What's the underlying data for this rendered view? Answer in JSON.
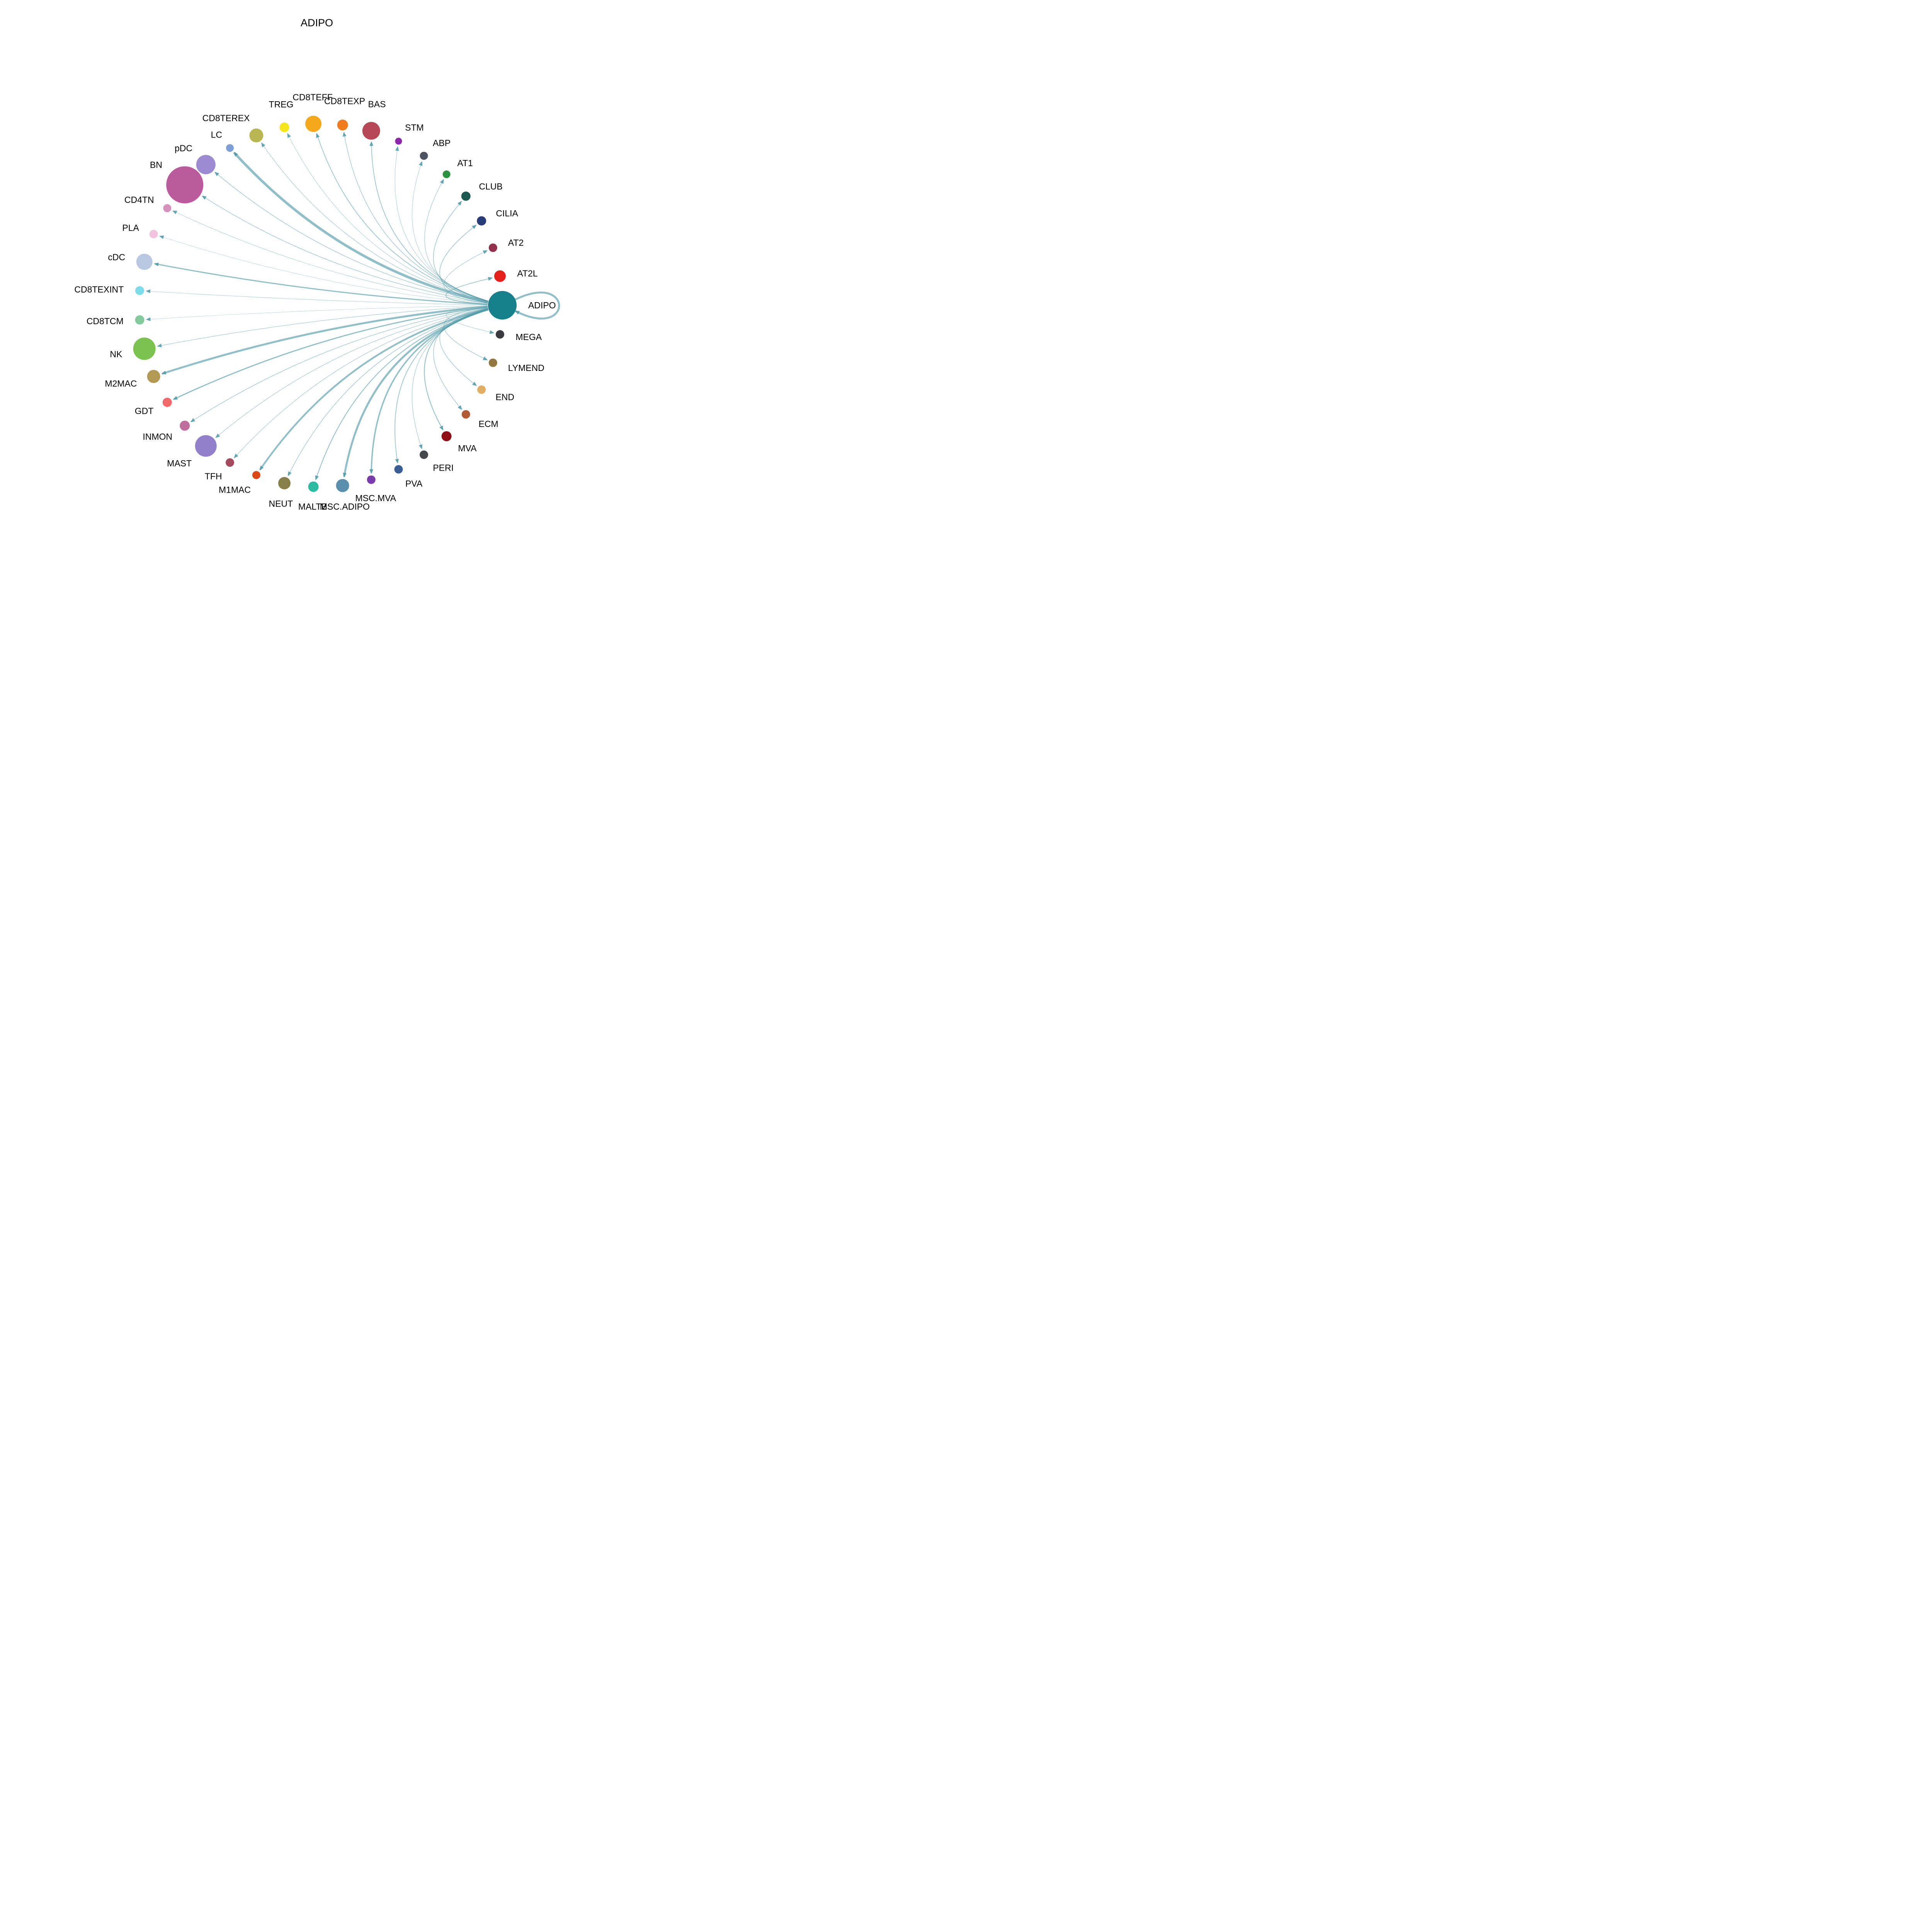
{
  "chart_data": {
    "type": "network",
    "title": "ADIPO",
    "edge_color": "#4e98a6",
    "layout": {
      "center": [
        830,
        790
      ],
      "ring_radius": 470,
      "label_offset": 30,
      "self_loop_extent": 185,
      "legend": "nodes arranged on circle, all directed edges originate from ADIPO node, arrowheads at targets, edge width = interaction strength"
    },
    "nodes": [
      {
        "id": "ADIPO",
        "label": "ADIPO",
        "color": "#17808a",
        "r": 37,
        "angle": 0
      },
      {
        "id": "AT2L",
        "label": "AT2L",
        "color": "#e2201c",
        "r": 15,
        "angle": 9.23
      },
      {
        "id": "AT2",
        "label": "AT2",
        "color": "#93304d",
        "r": 11,
        "angle": 18.46
      },
      {
        "id": "CILIA",
        "label": "CILIA",
        "color": "#283c77",
        "r": 12,
        "angle": 27.69
      },
      {
        "id": "CLUB",
        "label": "CLUB",
        "color": "#1d5951",
        "r": 12,
        "angle": 36.92
      },
      {
        "id": "AT1",
        "label": "AT1",
        "color": "#2c9140",
        "r": 10,
        "angle": 46.15
      },
      {
        "id": "ABP",
        "label": "ABP",
        "color": "#4d5360",
        "r": 10.5,
        "angle": 55.38
      },
      {
        "id": "STM",
        "label": "STM",
        "color": "#8b27a8",
        "r": 9,
        "angle": 64.62
      },
      {
        "id": "BAS",
        "label": "BAS",
        "color": "#b64955",
        "r": 23,
        "angle": 73.85
      },
      {
        "id": "CD8TEXP",
        "label": "CD8TEXP",
        "color": "#ef7d1f",
        "r": 14,
        "angle": 83.08
      },
      {
        "id": "CD8TEFF",
        "label": "CD8TEFF",
        "color": "#f5a81c",
        "r": 21,
        "angle": 92.31
      },
      {
        "id": "TREG",
        "label": "TREG",
        "color": "#f7e51c",
        "r": 12.5,
        "angle": 101.54
      },
      {
        "id": "CD8TEREX",
        "label": "CD8TEREX",
        "color": "#b9b751",
        "r": 18,
        "angle": 110.77
      },
      {
        "id": "LC",
        "label": "LC",
        "color": "#7e9fd6",
        "r": 10,
        "angle": 120.0
      },
      {
        "id": "pDC",
        "label": "pDC",
        "color": "#9c8bd0",
        "r": 25,
        "angle": 129.23
      },
      {
        "id": "BN",
        "label": "BN",
        "color": "#bc5a9e",
        "r": 48,
        "angle": 138.46
      },
      {
        "id": "CD4TN",
        "label": "CD4TN",
        "color": "#d592bd",
        "r": 10.5,
        "angle": 147.69
      },
      {
        "id": "PLA",
        "label": "PLA",
        "color": "#f3c3de",
        "r": 11,
        "angle": 156.92
      },
      {
        "id": "cDC",
        "label": "cDC",
        "color": "#b9c8e0",
        "r": 21,
        "angle": 166.15
      },
      {
        "id": "CD8TEXINT",
        "label": "CD8TEXINT",
        "color": "#7edce8",
        "r": 11.5,
        "angle": 175.38
      },
      {
        "id": "CD8TCM",
        "label": "CD8TCM",
        "color": "#83ca9c",
        "r": 12,
        "angle": 184.62
      },
      {
        "id": "NK",
        "label": "NK",
        "color": "#7cc24f",
        "r": 29,
        "angle": 193.85
      },
      {
        "id": "M2MAC",
        "label": "M2MAC",
        "color": "#b29a54",
        "r": 17,
        "angle": 203.08
      },
      {
        "id": "GDT",
        "label": "GDT",
        "color": "#f2696b",
        "r": 12,
        "angle": 212.31
      },
      {
        "id": "INMON",
        "label": "INMON",
        "color": "#c06f9d",
        "r": 13,
        "angle": 221.54
      },
      {
        "id": "MAST",
        "label": "MAST",
        "color": "#9480ca",
        "r": 28,
        "angle": 230.77
      },
      {
        "id": "TFH",
        "label": "TFH",
        "color": "#a34b5c",
        "r": 11,
        "angle": 240.0
      },
      {
        "id": "M1MAC",
        "label": "M1MAC",
        "color": "#db4718",
        "r": 10.5,
        "angle": 249.23
      },
      {
        "id": "NEUT",
        "label": "NEUT",
        "color": "#877f4a",
        "r": 16,
        "angle": 258.46
      },
      {
        "id": "MALTB",
        "label": "MALTB",
        "color": "#2cbaa2",
        "r": 13.5,
        "angle": 267.69
      },
      {
        "id": "MSC.ADIPO",
        "label": "MSC.ADIPO",
        "color": "#5b8fae",
        "r": 17,
        "angle": 276.92
      },
      {
        "id": "MSC.MVA",
        "label": "MSC.MVA",
        "color": "#7b3cab",
        "r": 11,
        "angle": 286.15
      },
      {
        "id": "PVA",
        "label": "PVA",
        "color": "#3a5e94",
        "r": 11,
        "angle": 295.38
      },
      {
        "id": "PERI",
        "label": "PERI",
        "color": "#45474f",
        "r": 11,
        "angle": 304.62
      },
      {
        "id": "MVA",
        "label": "MVA",
        "color": "#8c1016",
        "r": 13,
        "angle": 313.85
      },
      {
        "id": "ECM",
        "label": "ECM",
        "color": "#b05c35",
        "r": 11,
        "angle": 323.08
      },
      {
        "id": "END",
        "label": "END",
        "color": "#e0af63",
        "r": 11,
        "angle": 332.31
      },
      {
        "id": "LYMEND",
        "label": "LYMEND",
        "color": "#93793f",
        "r": 11,
        "angle": 341.54
      },
      {
        "id": "MEGA",
        "label": "MEGA",
        "color": "#3a3a3c",
        "r": 11,
        "angle": 350.77
      }
    ],
    "edges": [
      {
        "source": "ADIPO",
        "target": "ADIPO",
        "width": 5
      },
      {
        "source": "ADIPO",
        "target": "AT2L",
        "width": 1.6
      },
      {
        "source": "ADIPO",
        "target": "AT2",
        "width": 1
      },
      {
        "source": "ADIPO",
        "target": "CILIA",
        "width": 1.4
      },
      {
        "source": "ADIPO",
        "target": "CLUB",
        "width": 1.4
      },
      {
        "source": "ADIPO",
        "target": "AT1",
        "width": 1
      },
      {
        "source": "ADIPO",
        "target": "ABP",
        "width": 0.8
      },
      {
        "source": "ADIPO",
        "target": "STM",
        "width": 0.8
      },
      {
        "source": "ADIPO",
        "target": "BAS",
        "width": 1.6
      },
      {
        "source": "ADIPO",
        "target": "CD8TEXP",
        "width": 1.2
      },
      {
        "source": "ADIPO",
        "target": "CD8TEFF",
        "width": 1.6
      },
      {
        "source": "ADIPO",
        "target": "TREG",
        "width": 0.8
      },
      {
        "source": "ADIPO",
        "target": "CD8TEREX",
        "width": 1
      },
      {
        "source": "ADIPO",
        "target": "LC",
        "width": 6.5
      },
      {
        "source": "ADIPO",
        "target": "pDC",
        "width": 1.2
      },
      {
        "source": "ADIPO",
        "target": "BN",
        "width": 1.2
      },
      {
        "source": "ADIPO",
        "target": "CD4TN",
        "width": 0.8
      },
      {
        "source": "ADIPO",
        "target": "PLA",
        "width": 0.6
      },
      {
        "source": "ADIPO",
        "target": "cDC",
        "width": 3
      },
      {
        "source": "ADIPO",
        "target": "CD8TEXINT",
        "width": 0.8
      },
      {
        "source": "ADIPO",
        "target": "CD8TCM",
        "width": 0.6
      },
      {
        "source": "ADIPO",
        "target": "NK",
        "width": 1
      },
      {
        "source": "ADIPO",
        "target": "M2MAC",
        "width": 5
      },
      {
        "source": "ADIPO",
        "target": "GDT",
        "width": 3
      },
      {
        "source": "ADIPO",
        "target": "INMON",
        "width": 1.2
      },
      {
        "source": "ADIPO",
        "target": "MAST",
        "width": 1
      },
      {
        "source": "ADIPO",
        "target": "TFH",
        "width": 1
      },
      {
        "source": "ADIPO",
        "target": "M1MAC",
        "width": 4.5
      },
      {
        "source": "ADIPO",
        "target": "NEUT",
        "width": 1.2
      },
      {
        "source": "ADIPO",
        "target": "MALTB",
        "width": 2
      },
      {
        "source": "ADIPO",
        "target": "MSC.ADIPO",
        "width": 5
      },
      {
        "source": "ADIPO",
        "target": "MSC.MVA",
        "width": 3.5
      },
      {
        "source": "ADIPO",
        "target": "PVA",
        "width": 1.6
      },
      {
        "source": "ADIPO",
        "target": "PERI",
        "width": 1
      },
      {
        "source": "ADIPO",
        "target": "MVA",
        "width": 2
      },
      {
        "source": "ADIPO",
        "target": "ECM",
        "width": 1.2
      },
      {
        "source": "ADIPO",
        "target": "END",
        "width": 1.2
      },
      {
        "source": "ADIPO",
        "target": "LYMEND",
        "width": 1.2
      },
      {
        "source": "ADIPO",
        "target": "MEGA",
        "width": 0.8
      }
    ]
  }
}
